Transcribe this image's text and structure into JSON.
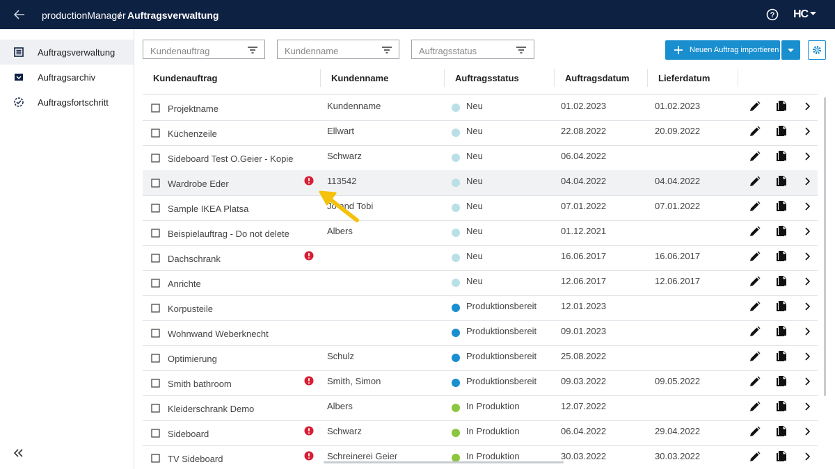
{
  "header": {
    "app": "productionManager",
    "separator": "/",
    "page": "Auftragsverwaltung",
    "logo": "HC"
  },
  "sidebar": {
    "items": [
      "Auftragsverwaltung",
      "Auftragsarchiv",
      "Auftragsfortschritt"
    ],
    "active": 0
  },
  "filters": [
    "Kundenauftrag",
    "Kundenname",
    "Auftragsstatus"
  ],
  "import_button": "Neuen Auftrag importieren",
  "table": {
    "columns": [
      "Kundenauftrag",
      "Kundenname",
      "Auftragsstatus",
      "Auftragsdatum",
      "Lieferdatum"
    ],
    "highlighted_row": 3,
    "rows": [
      {
        "name": "Projektname",
        "customer": "Kundenname",
        "status": "Neu",
        "status_color": "#b9e0e6",
        "order_date": "01.02.2023",
        "delivery_date": "01.02.2023",
        "warning": false
      },
      {
        "name": "Küchenzeile",
        "customer": "Ellwart",
        "status": "Neu",
        "status_color": "#b9e0e6",
        "order_date": "22.08.2022",
        "delivery_date": "20.09.2022",
        "warning": false
      },
      {
        "name": "Sideboard Test O.Geier - Kopie",
        "customer": "Schwarz",
        "status": "Neu",
        "status_color": "#b9e0e6",
        "order_date": "06.04.2022",
        "delivery_date": null,
        "warning": false
      },
      {
        "name": "Wardrobe Eder",
        "customer": "113542",
        "status": "Neu",
        "status_color": "#b9e0e6",
        "order_date": "04.04.2022",
        "delivery_date": "04.04.2022",
        "warning": true
      },
      {
        "name": "Sample IKEA Platsa",
        "customer": "Jo and Tobi",
        "status": "Neu",
        "status_color": "#b9e0e6",
        "order_date": "07.01.2022",
        "delivery_date": "07.01.2022",
        "warning": false
      },
      {
        "name": "Beispielauftrag - Do not delete",
        "customer": "Albers",
        "status": "Neu",
        "status_color": "#b9e0e6",
        "order_date": "01.12.2021",
        "delivery_date": null,
        "warning": false
      },
      {
        "name": "Dachschrank",
        "customer": null,
        "status": "Neu",
        "status_color": "#b9e0e6",
        "order_date": "16.06.2017",
        "delivery_date": "16.06.2017",
        "warning": true
      },
      {
        "name": "Anrichte",
        "customer": null,
        "status": "Neu",
        "status_color": "#b9e0e6",
        "order_date": "12.06.2017",
        "delivery_date": "12.06.2017",
        "warning": false
      },
      {
        "name": "Korpusteile",
        "customer": null,
        "status": "Produktionsbereit",
        "status_color": "#1a8fd0",
        "order_date": "12.01.2023",
        "delivery_date": null,
        "warning": false
      },
      {
        "name": "Wohnwand Weberknecht",
        "customer": null,
        "status": "Produktionsbereit",
        "status_color": "#1a8fd0",
        "order_date": "09.01.2023",
        "delivery_date": null,
        "warning": false
      },
      {
        "name": "Optimierung",
        "customer": "Schulz",
        "status": "Produktionsbereit",
        "status_color": "#1a8fd0",
        "order_date": "25.08.2022",
        "delivery_date": null,
        "warning": false
      },
      {
        "name": "Smith bathroom",
        "customer": "Smith, Simon",
        "status": "Produktionsbereit",
        "status_color": "#1a8fd0",
        "order_date": "09.03.2022",
        "delivery_date": "09.05.2022",
        "warning": true
      },
      {
        "name": "Kleiderschrank Demo",
        "customer": "Albers",
        "status": "In Produktion",
        "status_color": "#8cc63f",
        "order_date": "12.07.2022",
        "delivery_date": null,
        "warning": false
      },
      {
        "name": "Sideboard",
        "customer": "Schwarz",
        "status": "In Produktion",
        "status_color": "#8cc63f",
        "order_date": "06.04.2022",
        "delivery_date": "29.04.2022",
        "warning": true
      },
      {
        "name": "TV Sideboard",
        "customer": "Schreinerei Geier",
        "status": "In Produktion",
        "status_color": "#8cc63f",
        "order_date": "30.03.2022",
        "delivery_date": "30.03.2022",
        "warning": true
      }
    ]
  }
}
